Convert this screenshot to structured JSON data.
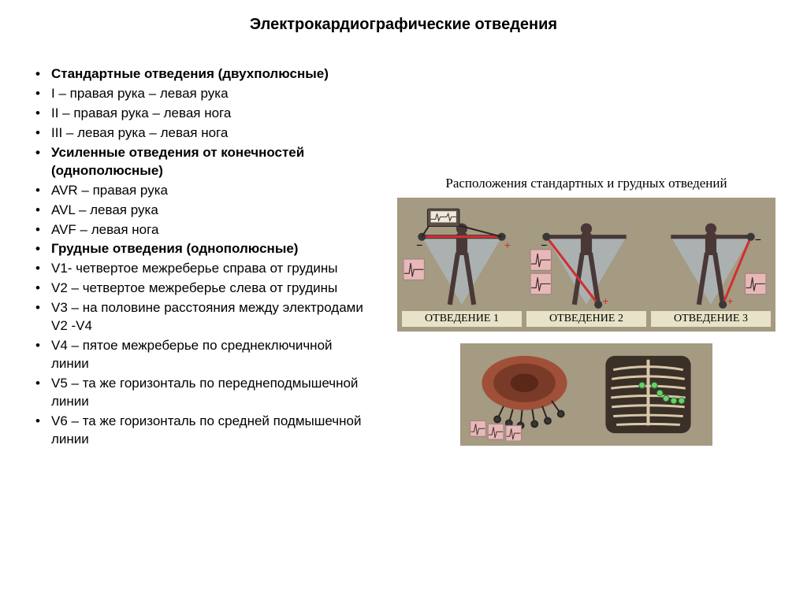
{
  "title": "Электрокардиографические отведения",
  "bullets": [
    {
      "text": "Стандартные отведения (двухполюсные)",
      "bold": true
    },
    {
      "text": "I – правая рука – левая рука",
      "bold": false
    },
    {
      "text": "II – правая рука – левая нога",
      "bold": false
    },
    {
      "text": "III – левая рука – левая нога",
      "bold": false
    },
    {
      "text": "Усиленные отведения от конечностей (однополюсные)",
      "bold": true
    },
    {
      "text": "AVR – правая рука",
      "bold": false
    },
    {
      "text": "AVL – левая рука",
      "bold": false
    },
    {
      "text": "AVF – левая нога",
      "bold": false
    },
    {
      "text": "Грудные отведения (однополюсные)",
      "bold": true
    },
    {
      "text": "V1- четвертое межреберье справа от грудины",
      "bold": false
    },
    {
      "text": "V2 – четвертое межреберье слева от грудины",
      "bold": false
    },
    {
      "text": "V3 – на половине расстояния между электродами V2 -V4",
      "bold": false
    },
    {
      "text": "V4 – пятое межреберье по среднеключичной линии",
      "bold": false
    },
    {
      "text": "V5 – та же горизонталь по переднеподмышечной линии",
      "bold": false
    },
    {
      "text": "V6 – та же горизонталь по средней подмышечной линии",
      "bold": false
    }
  ],
  "figure": {
    "caption": "Расположения стандартных и грудных отведений",
    "panels": [
      {
        "label": "ОТВЕДЕНИЕ 1"
      },
      {
        "label": "ОТВЕДЕНИЕ 2"
      },
      {
        "label": "ОТВЕДЕНИЕ 3"
      }
    ],
    "colors": {
      "figure_bg": "#a59a82",
      "panel_label_bg": "#e8e3c8",
      "body_fill": "#4a3838",
      "triangle_fill": "#b0c4d8",
      "triangle_opacity": 0.5,
      "lead_red": "#d03030",
      "lead_minus": "#202020",
      "lead_plus": "#d03030",
      "ecg_bg": "#e8b8b8",
      "ecg_line": "#403030",
      "device_body": "#5a5048",
      "device_highlight": "#f0e8d8",
      "chest_muscle": "#a05038",
      "ribs": "#d8c8a8",
      "ribs_dark": "#3a3028"
    }
  }
}
